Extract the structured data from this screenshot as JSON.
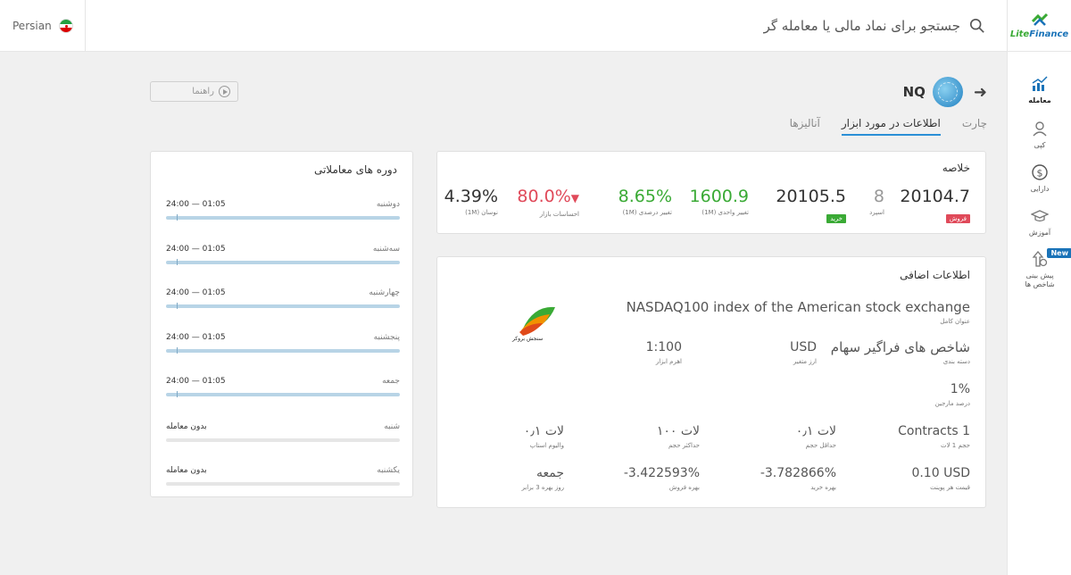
{
  "header": {
    "language": "Persian",
    "search_placeholder": "جستجو برای نماد مالی یا معامله گر",
    "logo": {
      "part1": "Lite",
      "part2": "Finance"
    }
  },
  "sidebar": {
    "items": [
      {
        "label": "معامله",
        "icon": "chart-icon",
        "active": true
      },
      {
        "label": "کپی",
        "icon": "user-icon"
      },
      {
        "label": "دارایی",
        "icon": "dollar-icon"
      },
      {
        "label": "آموزش",
        "icon": "graduation-cap-icon"
      },
      {
        "label": "پیش بینی شاخص ها",
        "icon": "index-forecast-icon",
        "badge": "New"
      }
    ]
  },
  "instrument": {
    "symbol": "NQ",
    "guide_label": "راهنما",
    "tabs": [
      {
        "label": "چارت"
      },
      {
        "label": "اطلاعات در مورد ابزار",
        "active": true
      },
      {
        "label": "آنالیزها"
      }
    ]
  },
  "summary": {
    "title": "خلاصه",
    "sell": {
      "value": "20104.7",
      "badge": "فروش"
    },
    "spread": {
      "value": "8",
      "label": "اسپرد"
    },
    "buy": {
      "value": "20105.5",
      "badge": "خرید"
    },
    "unit_change": {
      "value": "1600.9",
      "label": "تغییر واحدی (1M)"
    },
    "percent_change": {
      "value": "8.65%",
      "label": "تغییر درصدی (1M)"
    },
    "sentiment": {
      "value": "80.0%",
      "arrow": "▼",
      "label": "احساسات بازار"
    },
    "volatility": {
      "value": "4.39%",
      "label": "نوسان (1M)"
    }
  },
  "extra": {
    "title": "اطلاعات اضافی",
    "broker_name": "سنجش بروکر",
    "full_name": {
      "value": "NASDAQ100 index of the American stock exchange",
      "label": "عنوان کامل"
    },
    "category": {
      "value": "شاخص های فراگیر سهام",
      "label": "دسته بندی"
    },
    "currency": {
      "value": "USD",
      "label": "ارز متغیر"
    },
    "leverage": {
      "value": "1:100",
      "label": "اهرم ابزار"
    },
    "margin": {
      "value": "1%",
      "label": "درصد مارجین"
    },
    "lot_size": {
      "value": "Contracts 1",
      "label": "حجم 1 لات"
    },
    "min_volume": {
      "value": "۰٫۱ لات",
      "label": "حداقل حجم"
    },
    "max_volume": {
      "value": "۱۰۰ لات",
      "label": "حداکثر حجم"
    },
    "stop_volume": {
      "value": "۰٫۱ لات",
      "label": "والیوم استاپ"
    },
    "point_value": {
      "value": "0.10 USD",
      "label": "قیمت هر پوینت"
    },
    "buy_swap": {
      "value": "-3.782866%",
      "label": "بهره خرید"
    },
    "sell_swap": {
      "value": "-3.422593%",
      "label": "بهره فروش"
    },
    "triple_swap": {
      "value": "جمعه",
      "label": "روز بهره 3 برابر"
    }
  },
  "periods": {
    "title": "دوره های معاملاتی",
    "items": [
      {
        "day": "دوشنبه",
        "time": "01:05 — 24:00",
        "open": true
      },
      {
        "day": "سه‌شنبه",
        "time": "01:05 — 24:00",
        "open": true
      },
      {
        "day": "چهارشنبه",
        "time": "01:05 — 24:00",
        "open": true
      },
      {
        "day": "پنجشنبه",
        "time": "01:05 — 24:00",
        "open": true
      },
      {
        "day": "جمعه",
        "time": "01:05 — 24:00",
        "open": true
      },
      {
        "day": "شنبه",
        "time": "بدون معامله",
        "open": false
      },
      {
        "day": "یکشنبه",
        "time": "بدون معامله",
        "open": false
      }
    ]
  },
  "colors": {
    "accent": "#2b8fd6",
    "green": "#3aaa35",
    "red": "#e04a5a"
  }
}
